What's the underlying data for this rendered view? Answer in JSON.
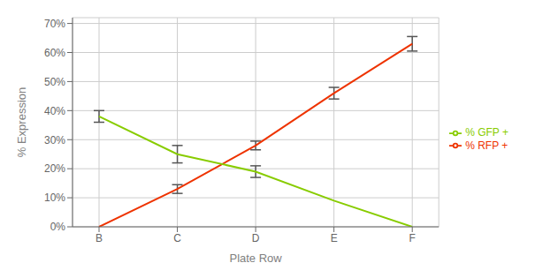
{
  "chart_data": {
    "type": "line",
    "categories": [
      "B",
      "C",
      "D",
      "E",
      "F"
    ],
    "series": [
      {
        "name": "% RFP +",
        "color": "#EE3300",
        "values": [
          0.0,
          0.13,
          0.28,
          0.46,
          0.63
        ],
        "errors": [
          0.0,
          0.015,
          0.015,
          0.02,
          0.025
        ]
      },
      {
        "name": "% GFP +",
        "color": "#88CC00",
        "values": [
          0.38,
          0.25,
          0.19,
          0.09,
          0.0
        ],
        "errors": [
          0.02,
          0.03,
          0.02,
          0.0,
          0.0
        ]
      }
    ],
    "xlabel": "Plate Row",
    "ylabel": "% Expression",
    "ylim": [
      0.0,
      0.72
    ],
    "yticks": [
      {
        "value": 0.0,
        "label": "0%"
      },
      {
        "value": 0.1,
        "label": "10%"
      },
      {
        "value": 0.2,
        "label": "20%"
      },
      {
        "value": 0.3,
        "label": "30%"
      },
      {
        "value": 0.4,
        "label": "40%"
      },
      {
        "value": 0.5,
        "label": "50%"
      },
      {
        "value": 0.6,
        "label": "60%"
      },
      {
        "value": 0.7,
        "label": "70%"
      }
    ],
    "grid": true,
    "legend": "right"
  }
}
